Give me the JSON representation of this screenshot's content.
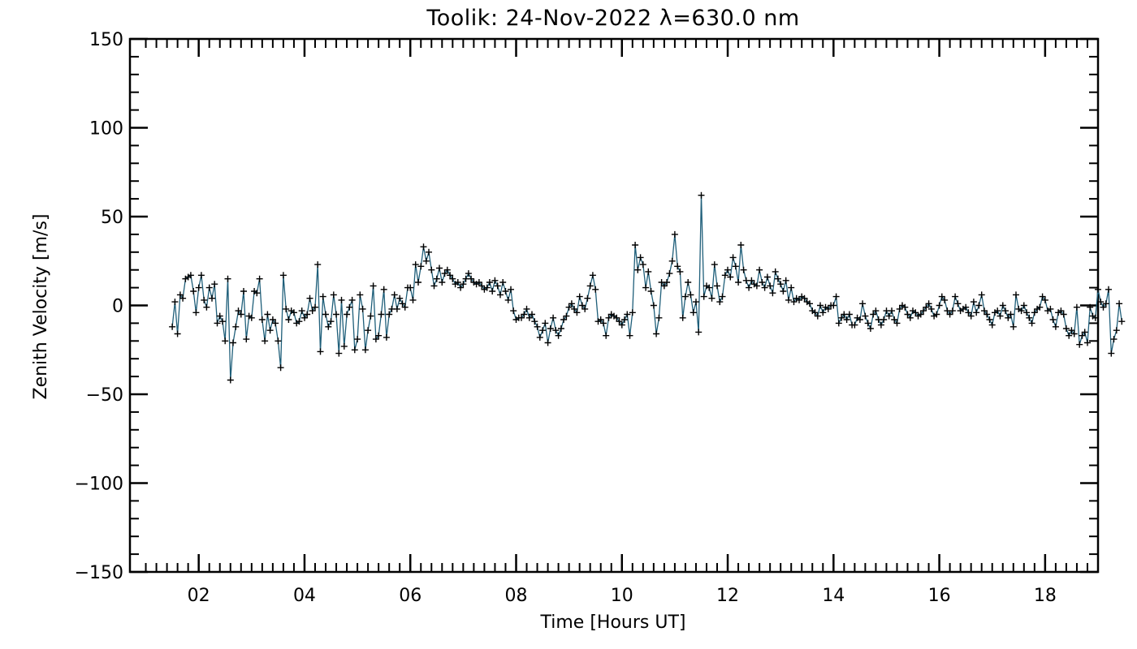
{
  "chart_data": {
    "type": "line",
    "title": "Toolik: 24-Nov-2022 λ=630.0 nm",
    "xlabel": "Time [Hours UT]",
    "ylabel": "Zenith Velocity [m/s]",
    "xlim": [
      0.7,
      19.0
    ],
    "ylim": [
      -150,
      150
    ],
    "x_ticks": [
      2,
      4,
      6,
      8,
      10,
      12,
      14,
      16,
      18
    ],
    "x_tick_labels": [
      "02",
      "04",
      "06",
      "08",
      "10",
      "12",
      "14",
      "16",
      "18"
    ],
    "y_ticks": [
      -150,
      -100,
      -50,
      0,
      50,
      100,
      150
    ],
    "y_tick_labels": [
      "−150",
      "−100",
      "−50",
      "0",
      "50",
      "100",
      "150"
    ],
    "line_color": "#1f5f7a",
    "marker": "+",
    "series": [
      {
        "x_start": 1.5,
        "x_step": 0.05,
        "values": [
          -12,
          2,
          -16,
          6,
          4,
          15,
          16,
          17,
          8,
          -4,
          10,
          17,
          3,
          -1,
          10,
          4,
          12,
          -10,
          -6,
          -9,
          -20,
          15,
          -42,
          -21,
          -12,
          -3,
          -5,
          8,
          -19,
          -6,
          -7,
          8,
          7,
          15,
          -8,
          -20,
          -5,
          -14,
          -8,
          -10,
          -20,
          -35,
          17,
          -2,
          -8,
          -3,
          -4,
          -10,
          -9,
          -3,
          -7,
          -5,
          4,
          -3,
          -1,
          23,
          -26,
          5,
          -5,
          -12,
          -9,
          6,
          -5,
          -27,
          3,
          -23,
          -5,
          -1,
          3,
          -25,
          -19,
          6,
          -2,
          -25,
          -14,
          -6,
          11,
          -19,
          -17,
          -5,
          9,
          -18,
          -5,
          -2,
          6,
          -2,
          4,
          1,
          -1,
          10,
          10,
          3,
          23,
          13,
          22,
          33,
          25,
          30,
          20,
          11,
          15,
          21,
          13,
          18,
          20,
          17,
          15,
          12,
          13,
          10,
          12,
          15,
          18,
          15,
          13,
          12,
          13,
          11,
          9,
          10,
          13,
          8,
          14,
          11,
          6,
          13,
          8,
          3,
          9,
          -3,
          -8,
          -7,
          -7,
          -5,
          -2,
          -7,
          -5,
          -9,
          -12,
          -18,
          -14,
          -10,
          -21,
          -13,
          -7,
          -14,
          -17,
          -13,
          -8,
          -6,
          -1,
          1,
          -2,
          -4,
          5,
          0,
          -2,
          4,
          11,
          17,
          9,
          -9,
          -8,
          -10,
          -17,
          -7,
          -5,
          -6,
          -7,
          -9,
          -11,
          -8,
          -5,
          -17,
          -4,
          34,
          20,
          27,
          23,
          10,
          19,
          8,
          0,
          -16,
          -7,
          13,
          11,
          13,
          18,
          25,
          40,
          22,
          19,
          -7,
          5,
          13,
          6,
          -4,
          2,
          -15
        ]
      }
    ],
    "series_rest": {
      "x_start": 11.5,
      "x_step": 0.05,
      "values": [
        62,
        5,
        11,
        10,
        4,
        23,
        11,
        2,
        5,
        17,
        20,
        16,
        27,
        22,
        13,
        34,
        20,
        14,
        10,
        14,
        12,
        11,
        20,
        13,
        10,
        16,
        11,
        7,
        19,
        15,
        12,
        8,
        14,
        3,
        10,
        2,
        4,
        3,
        5,
        4,
        2,
        1,
        -3,
        -4,
        -6,
        0,
        -4,
        -1,
        -2,
        0,
        0,
        5,
        -10,
        -7,
        -5,
        -8,
        -5,
        -11,
        -11,
        -7,
        -8,
        1,
        -6,
        -10,
        -13,
        -5,
        -3,
        -8,
        -11,
        -8,
        -3,
        -6,
        -3,
        -8,
        -10,
        -2,
        0,
        -1,
        -5,
        -7,
        -3,
        -4,
        -6,
        -5,
        -3,
        -1,
        1,
        -2,
        -6,
        -5,
        0,
        5,
        3,
        -3,
        -5,
        -3,
        5,
        1,
        -3,
        -2
      ]
    },
    "series_tail": {
      "x_start": 16.5,
      "x_step": 0.05,
      "values": [
        -1,
        -4,
        -6,
        2,
        -4,
        0,
        6,
        -3,
        -5,
        -8,
        -11,
        -4,
        -3,
        -6,
        0,
        -3,
        -7,
        -5,
        -12,
        6,
        -2,
        -3,
        0,
        -4,
        -7,
        -10,
        -4,
        -2,
        -1,
        5,
        3,
        -3,
        -2,
        -8,
        -12,
        -4,
        -3,
        -5,
        -13,
        -17,
        -14,
        -16,
        -1,
        -22,
        -17,
        -15,
        -21,
        -1,
        -6,
        -7,
        9,
        2,
        -1,
        1,
        9,
        -27,
        -19,
        -14,
        1,
        -9
      ]
    }
  }
}
